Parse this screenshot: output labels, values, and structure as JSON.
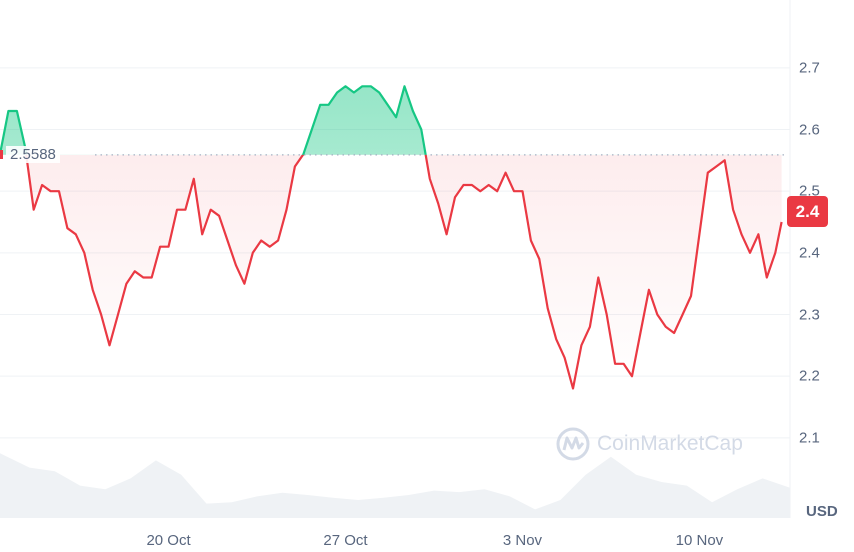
{
  "chart_data": {
    "type": "line",
    "title": "",
    "xlabel": "",
    "ylabel": "USD",
    "currency": "USD",
    "current_price_label": "2.4",
    "baseline": 2.5588,
    "baseline_label": "2.5588",
    "ylim": [
      1.97,
      2.81
    ],
    "xlim": [
      "13 Oct 08:00",
      "13 Nov 14:00"
    ],
    "y_ticks": [
      "2.1",
      "2.2",
      "2.3",
      "2.4",
      "2.5",
      "2.6",
      "2.7"
    ],
    "x_ticks": [
      "20 Oct",
      "27 Oct",
      "3 Nov",
      "10 Nov"
    ],
    "grid": true,
    "colors": {
      "up": "#16c784",
      "down": "#ea3943",
      "volume": "#eff2f5",
      "grid": "#eff2f5"
    },
    "series": [
      {
        "x": [
          "13 Oct 08:00",
          "13 Oct 16:00",
          "14 Oct 00:00",
          "14 Oct 08:00",
          "14 Oct 16:00",
          "15 Oct 00:00",
          "15 Oct 08:00",
          "15 Oct 16:00",
          "16 Oct 00:00",
          "16 Oct 08:00",
          "16 Oct 16:00",
          "17 Oct 00:00",
          "17 Oct 08:00",
          "17 Oct 16:00",
          "18 Oct 00:00",
          "18 Oct 08:00",
          "18 Oct 16:00",
          "19 Oct 00:00",
          "19 Oct 08:00",
          "19 Oct 16:00",
          "20 Oct 00:00",
          "20 Oct 08:00",
          "20 Oct 16:00",
          "21 Oct 00:00",
          "21 Oct 08:00",
          "21 Oct 16:00",
          "22 Oct 00:00",
          "22 Oct 08:00",
          "22 Oct 16:00",
          "23 Oct 00:00",
          "23 Oct 08:00",
          "23 Oct 16:00",
          "24 Oct 00:00",
          "24 Oct 08:00",
          "24 Oct 16:00",
          "25 Oct 00:00",
          "25 Oct 08:00",
          "25 Oct 16:00",
          "26 Oct 00:00",
          "26 Oct 08:00",
          "26 Oct 16:00",
          "27 Oct 00:00",
          "27 Oct 08:00",
          "27 Oct 16:00",
          "28 Oct 00:00",
          "28 Oct 08:00",
          "28 Oct 16:00",
          "29 Oct 00:00",
          "29 Oct 08:00",
          "29 Oct 16:00",
          "30 Oct 00:00",
          "30 Oct 08:00",
          "30 Oct 16:00",
          "31 Oct 00:00",
          "31 Oct 08:00",
          "31 Oct 16:00",
          "1 Nov 00:00",
          "1 Nov 08:00",
          "1 Nov 16:00",
          "2 Nov 00:00",
          "2 Nov 08:00",
          "2 Nov 16:00",
          "3 Nov 00:00",
          "3 Nov 08:00",
          "3 Nov 16:00",
          "4 Nov 00:00",
          "4 Nov 08:00",
          "4 Nov 16:00",
          "5 Nov 00:00",
          "5 Nov 08:00",
          "5 Nov 16:00",
          "6 Nov 00:00",
          "6 Nov 08:00",
          "6 Nov 16:00",
          "7 Nov 00:00",
          "7 Nov 08:00",
          "7 Nov 16:00",
          "8 Nov 00:00",
          "8 Nov 08:00",
          "8 Nov 16:00",
          "9 Nov 00:00",
          "9 Nov 08:00",
          "9 Nov 16:00",
          "10 Nov 00:00",
          "10 Nov 08:00",
          "10 Nov 16:00",
          "11 Nov 00:00",
          "11 Nov 08:00",
          "11 Nov 16:00",
          "12 Nov 00:00",
          "12 Nov 08:00",
          "12 Nov 16:00",
          "13 Nov 00:00",
          "13 Nov 06:00"
        ],
        "y": [
          2.56,
          2.63,
          2.63,
          2.57,
          2.47,
          2.51,
          2.5,
          2.5,
          2.44,
          2.43,
          2.4,
          2.34,
          2.3,
          2.25,
          2.3,
          2.35,
          2.37,
          2.36,
          2.36,
          2.41,
          2.41,
          2.47,
          2.47,
          2.52,
          2.43,
          2.47,
          2.46,
          2.42,
          2.38,
          2.35,
          2.4,
          2.42,
          2.41,
          2.42,
          2.47,
          2.54,
          2.56,
          2.6,
          2.64,
          2.64,
          2.66,
          2.67,
          2.66,
          2.67,
          2.67,
          2.66,
          2.64,
          2.62,
          2.67,
          2.63,
          2.6,
          2.52,
          2.48,
          2.43,
          2.49,
          2.51,
          2.51,
          2.5,
          2.51,
          2.5,
          2.53,
          2.5,
          2.5,
          2.42,
          2.39,
          2.31,
          2.26,
          2.23,
          2.18,
          2.25,
          2.28,
          2.36,
          2.3,
          2.22,
          2.22,
          2.2,
          2.27,
          2.34,
          2.3,
          2.28,
          2.27,
          2.3,
          2.33,
          2.43,
          2.53,
          2.54,
          2.55,
          2.47,
          2.43,
          2.4,
          2.43,
          2.36,
          2.4,
          2.45
        ]
      }
    ],
    "volume_relative": {
      "x": [
        "13 Oct",
        "14 Oct",
        "15 Oct",
        "16 Oct",
        "17 Oct",
        "18 Oct",
        "19 Oct",
        "20 Oct",
        "21 Oct",
        "22 Oct",
        "23 Oct",
        "24 Oct",
        "25 Oct",
        "26 Oct",
        "27 Oct",
        "28 Oct",
        "29 Oct",
        "30 Oct",
        "31 Oct",
        "1 Nov",
        "2 Nov",
        "3 Nov",
        "4 Nov",
        "5 Nov",
        "6 Nov",
        "7 Nov",
        "8 Nov",
        "9 Nov",
        "10 Nov",
        "11 Nov",
        "12 Nov",
        "13 Nov"
      ],
      "y": [
        90,
        70,
        65,
        45,
        40,
        55,
        80,
        60,
        20,
        22,
        30,
        35,
        32,
        28,
        25,
        28,
        32,
        38,
        36,
        40,
        30,
        12,
        25,
        60,
        85,
        60,
        50,
        45,
        22,
        40,
        55,
        42
      ]
    }
  },
  "watermark": "CoinMarketCap"
}
